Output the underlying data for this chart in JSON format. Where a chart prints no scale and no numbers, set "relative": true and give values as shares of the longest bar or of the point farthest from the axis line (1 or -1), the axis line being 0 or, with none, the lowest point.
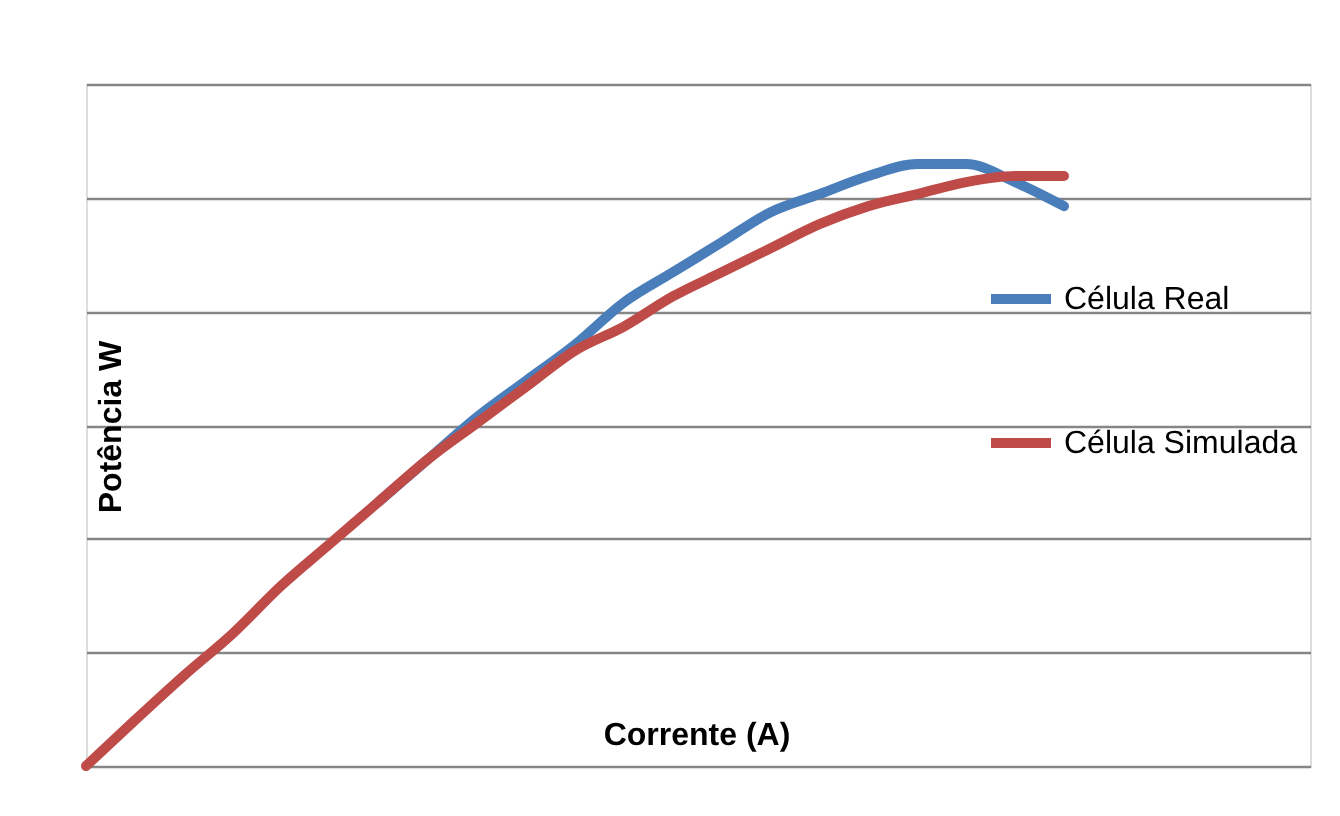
{
  "chart_data": {
    "type": "line",
    "relative": true,
    "xlabel": "Corrente (A)",
    "ylabel": "Potência W",
    "categories": [
      null,
      null,
      null,
      null,
      null,
      null,
      null,
      null,
      null,
      null,
      null,
      null,
      null,
      null,
      null,
      null,
      null,
      null,
      null,
      null,
      null
    ],
    "series": [
      {
        "name": "Célula Real",
        "color": "#4a7ebb",
        "values": [
          null,
          null,
          null,
          null,
          null,
          null,
          0.44,
          0.51,
          0.58,
          0.64,
          0.7,
          0.77,
          0.82,
          0.87,
          0.92,
          0.95,
          0.98,
          1.0,
          1.0,
          0.97,
          0.93
        ]
      },
      {
        "name": "Célula Simulada",
        "color": "#be4b48",
        "values": [
          0,
          0.076,
          0.15,
          0.22,
          0.3,
          0.37,
          0.44,
          0.51,
          0.57,
          0.63,
          0.69,
          0.73,
          0.78,
          0.82,
          0.86,
          0.9,
          0.93,
          0.95,
          0.97,
          0.98,
          0.98
        ]
      }
    ],
    "grid": "y",
    "legend": "right",
    "marker": "none",
    "line_style": "solid"
  }
}
